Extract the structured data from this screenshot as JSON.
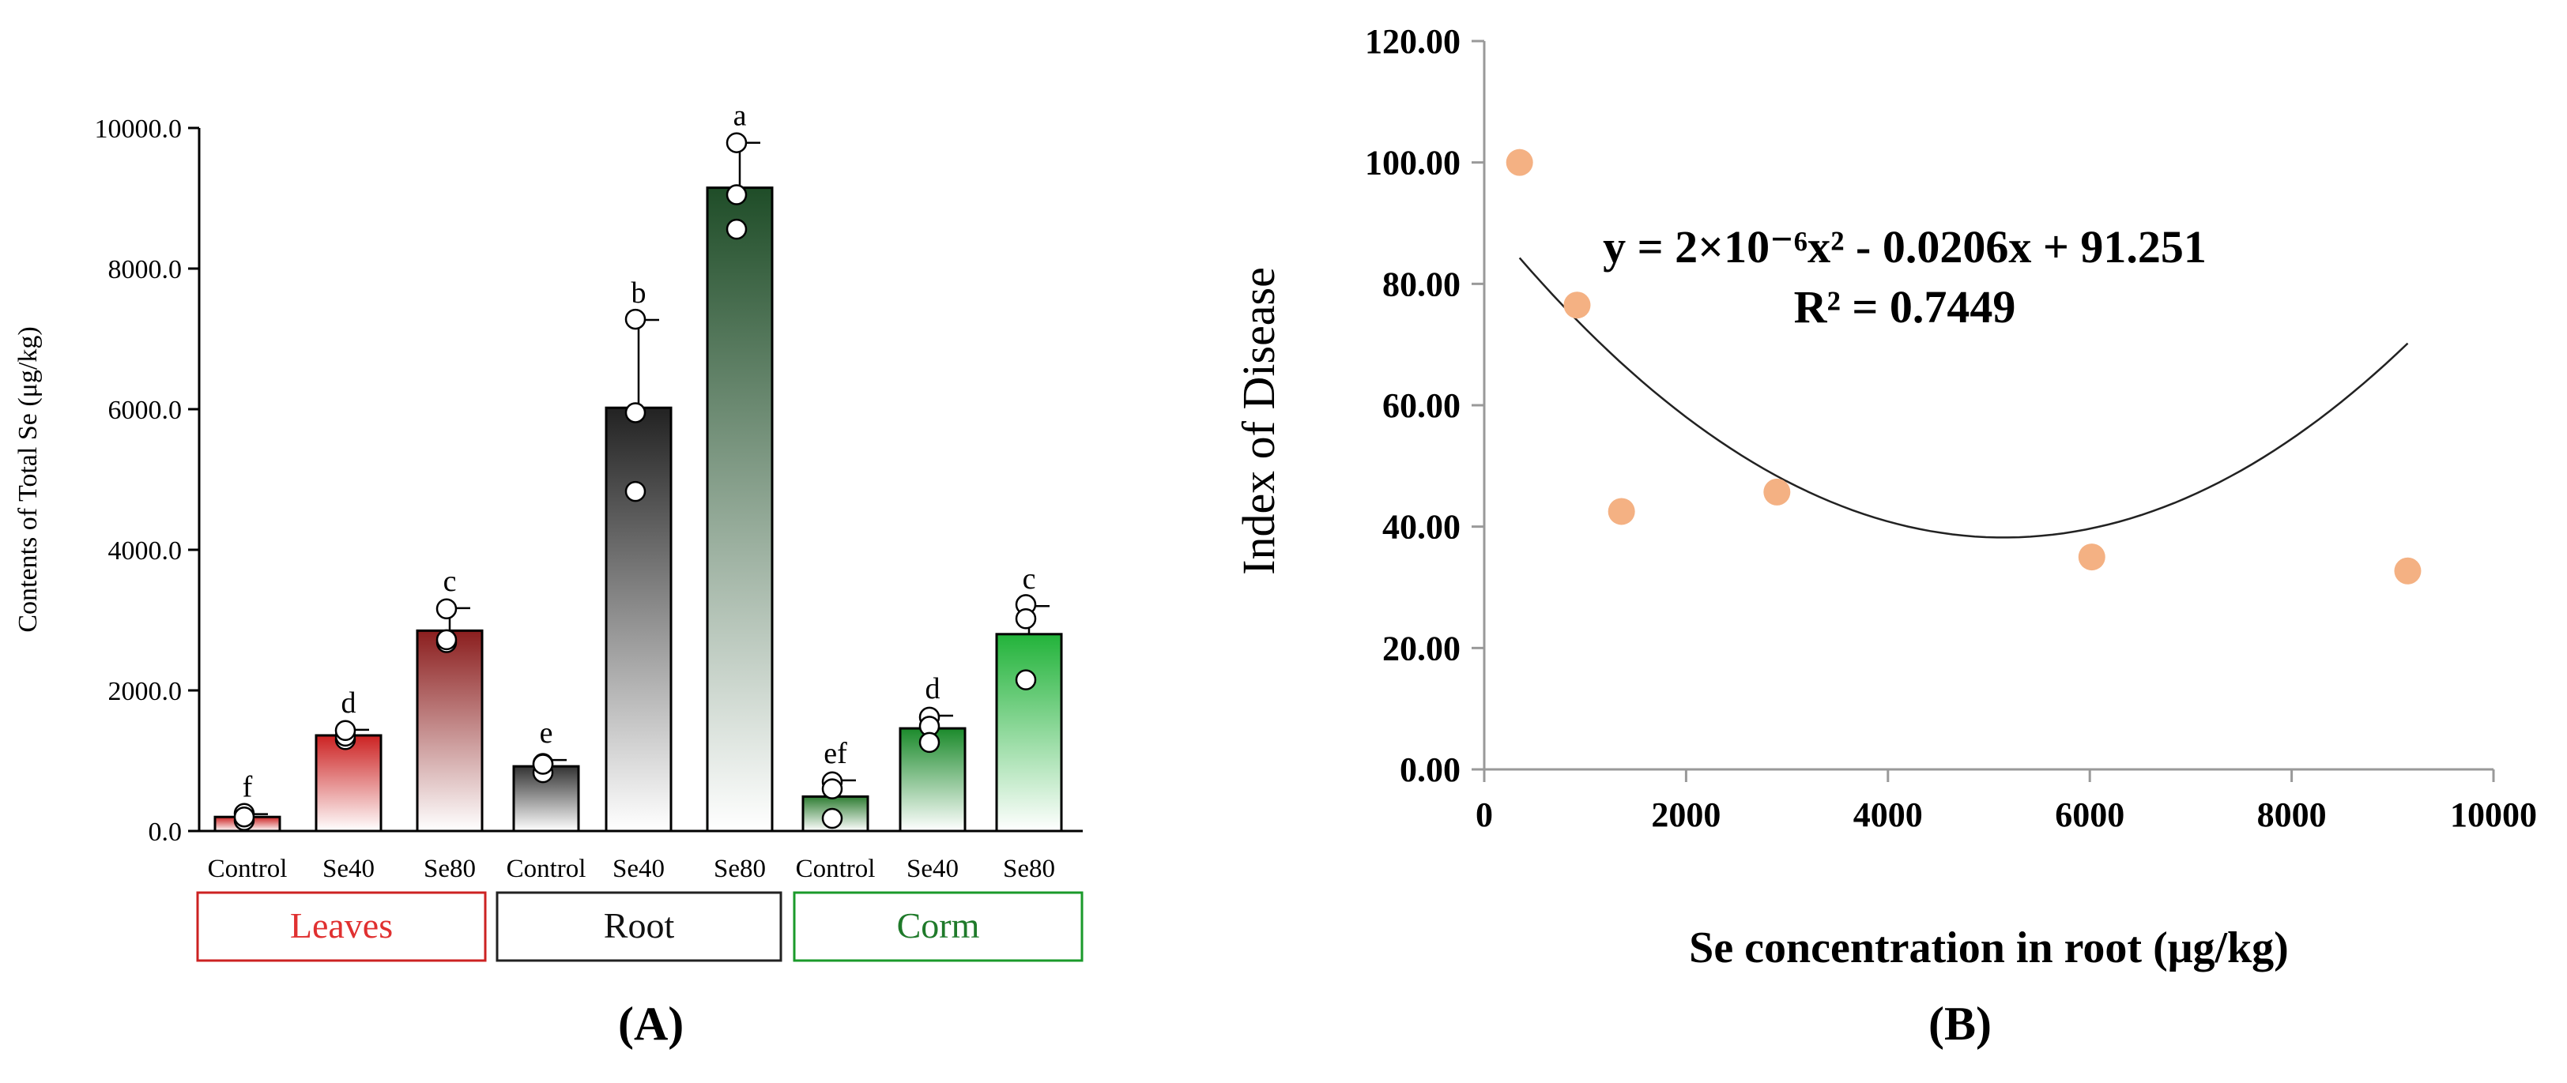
{
  "panels": {
    "a_label": "(A)",
    "b_label": "(B)"
  },
  "chart_data": [
    {
      "type": "bar",
      "panel": "A",
      "title": "",
      "ylabel": "Contents of Total Se (μg/kg)",
      "ylim": [
        0,
        10000
      ],
      "yticks": [
        0,
        2000,
        4000,
        6000,
        8000,
        10000
      ],
      "ytick_labels": [
        "0.0",
        "2000.0",
        "4000.0",
        "6000.0",
        "8000.0",
        "10000.0"
      ],
      "categories": [
        "Control",
        "Se40",
        "Se80",
        "Control",
        "Se40",
        "Se80",
        "Control",
        "Se40",
        "Se80"
      ],
      "groups": [
        {
          "name": "Leaves",
          "color": "#cc2222",
          "text_color": "#e03030",
          "indices": [
            0,
            1,
            2
          ]
        },
        {
          "name": "Root",
          "color": "#222222",
          "text_color": "#111111",
          "indices": [
            3,
            4,
            5
          ]
        },
        {
          "name": "Corm",
          "color": "#1a9a2a",
          "text_color": "#1f7a2a",
          "indices": [
            6,
            7,
            8
          ]
        }
      ],
      "values": [
        200,
        1360,
        2850,
        920,
        6020,
        9150,
        490,
        1460,
        2800
      ],
      "errors": [
        40,
        80,
        320,
        90,
        1250,
        640,
        230,
        180,
        400
      ],
      "letters": [
        "f",
        "d",
        "c",
        "e",
        "b",
        "a",
        "ef",
        "d",
        "c"
      ],
      "points": [
        [
          150,
          250,
          200
        ],
        [
          1300,
          1350,
          1430
        ],
        [
          2680,
          3160,
          2720
        ],
        [
          960,
          830,
          950
        ],
        [
          4830,
          5950,
          7280
        ],
        [
          9790,
          9050,
          8560
        ],
        [
          700,
          600,
          180
        ],
        [
          1620,
          1490,
          1260
        ],
        [
          3220,
          3020,
          2150
        ]
      ],
      "bar_top_colors": [
        "#cc2222",
        "#cc2222",
        "#8b1e1e",
        "#333333",
        "#222222",
        "#1f4d28",
        "#2e7d32",
        "#1b8a2b",
        "#22b33a"
      ]
    },
    {
      "type": "scatter",
      "panel": "B",
      "xlabel": "Se concentration in root (μg/kg)",
      "ylabel": "Index of Disease",
      "xlim": [
        0,
        10000
      ],
      "ylim": [
        0,
        120
      ],
      "xticks": [
        0,
        2000,
        4000,
        6000,
        8000,
        10000
      ],
      "xtick_labels": [
        "0",
        "2000",
        "4000",
        "6000",
        "8000",
        "10000"
      ],
      "yticks": [
        0,
        20,
        40,
        60,
        80,
        100,
        120
      ],
      "ytick_labels": [
        "0.00",
        "20.00",
        "40.00",
        "60.00",
        "80.00",
        "100.00",
        "120.00"
      ],
      "x": [
        350,
        920,
        1360,
        2900,
        6020,
        9150
      ],
      "y": [
        100.0,
        76.5,
        42.5,
        45.7,
        35.0,
        32.7
      ],
      "point_color": "#f4b183",
      "fit": {
        "type": "quadratic",
        "a": 2e-06,
        "b": -0.0206,
        "c": 91.251,
        "x_from": 350,
        "x_to": 9150
      },
      "equation": "y = 2×10⁻⁶x² - 0.0206x + 91.251",
      "r2": "R² = 0.7449"
    }
  ]
}
